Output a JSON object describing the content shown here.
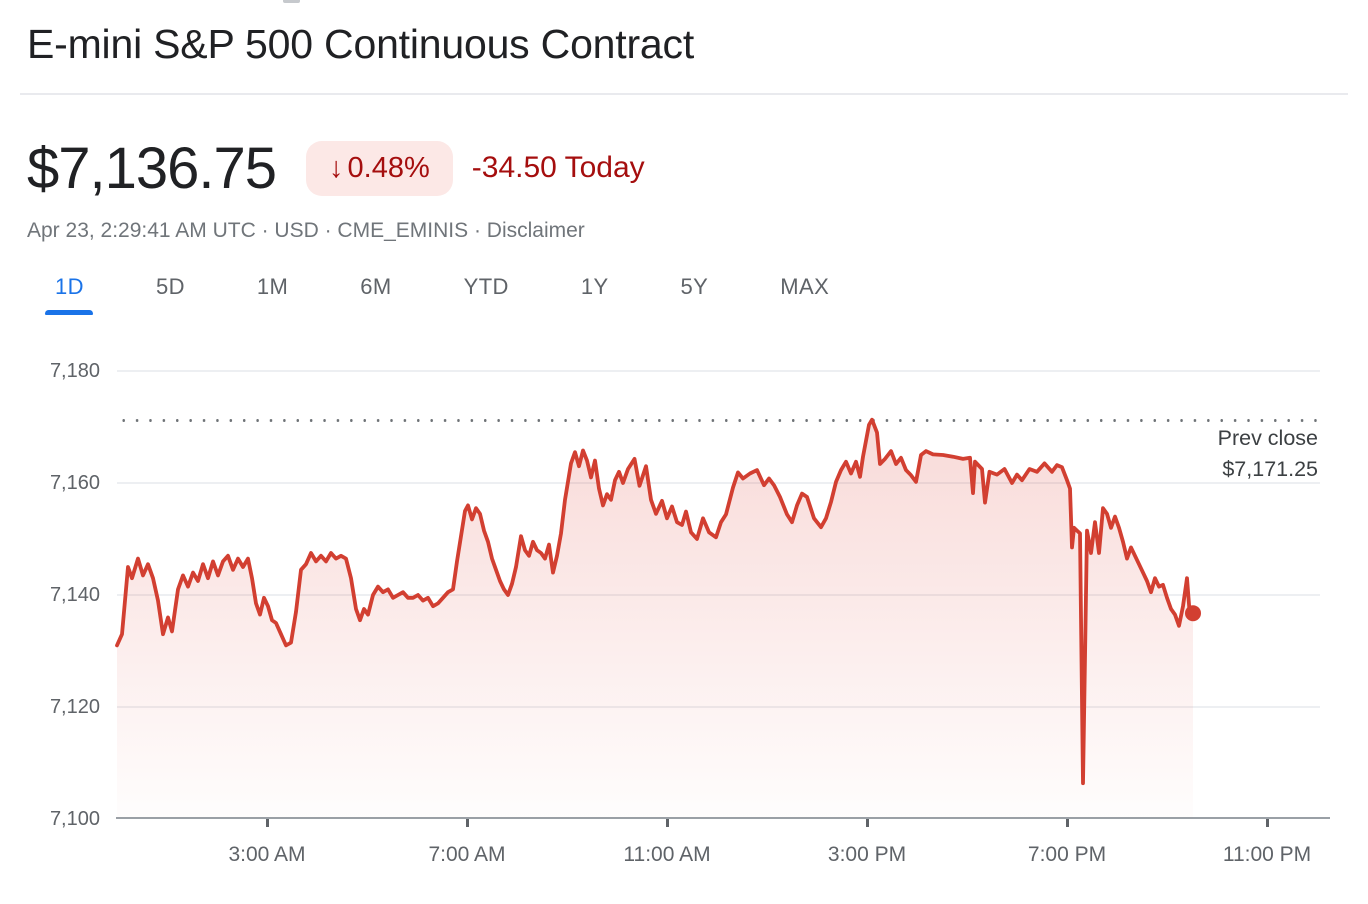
{
  "header": {
    "title": "E-mini S&P 500 Continuous Contract"
  },
  "quote": {
    "price": "$7,136.75",
    "arrow_glyph": "↓",
    "change_percent": "0.48%",
    "change_today": "-34.50 Today",
    "meta_text": "Apr 23, 2:29:41 AM UTC · USD · CME_EMINIS · ",
    "disclaimer_label": "Disclaimer",
    "down_color": "#a50e0e",
    "badge_bg": "#fce8e6"
  },
  "tabs": {
    "items": [
      {
        "label": "1D",
        "active": true
      },
      {
        "label": "5D",
        "active": false
      },
      {
        "label": "1M",
        "active": false
      },
      {
        "label": "6M",
        "active": false
      },
      {
        "label": "YTD",
        "active": false
      },
      {
        "label": "1Y",
        "active": false
      },
      {
        "label": "5Y",
        "active": false
      },
      {
        "label": "MAX",
        "active": false
      }
    ],
    "active_color": "#1a73e8",
    "inactive_color": "#5f6368"
  },
  "chart_data": {
    "type": "line",
    "title": "E-mini S&P 500 intraday price",
    "x_unit": "hours_since_midnight",
    "xlim": [
      0,
      24.06
    ],
    "ylim": [
      7100,
      7183.75
    ],
    "grid": true,
    "line_color": "#d23f31",
    "fill_color": "#d93025",
    "prev_close": 7171.25,
    "prev_close_label": [
      "Prev close",
      "$7,171.25"
    ],
    "last_price": 7136.75,
    "y_ticks": [
      {
        "value": 7180,
        "label": "7,180"
      },
      {
        "value": 7160,
        "label": "7,160"
      },
      {
        "value": 7140,
        "label": "7,140"
      },
      {
        "value": 7120,
        "label": "7,120"
      },
      {
        "value": 7100,
        "label": "7,100"
      }
    ],
    "x_ticks": [
      {
        "hour": 3,
        "label": "3:00 AM"
      },
      {
        "hour": 7,
        "label": "7:00 AM"
      },
      {
        "hour": 11,
        "label": "11:00 AM"
      },
      {
        "hour": 15,
        "label": "3:00 PM"
      },
      {
        "hour": 19,
        "label": "7:00 PM"
      },
      {
        "hour": 23,
        "label": "11:00 PM"
      }
    ],
    "series": [
      {
        "name": "price",
        "points": [
          [
            0.0,
            7131
          ],
          [
            0.1,
            7133
          ],
          [
            0.22,
            7145
          ],
          [
            0.3,
            7143
          ],
          [
            0.42,
            7146.5
          ],
          [
            0.52,
            7143.5
          ],
          [
            0.62,
            7145.5
          ],
          [
            0.72,
            7143
          ],
          [
            0.82,
            7139
          ],
          [
            0.92,
            7133
          ],
          [
            1.02,
            7136
          ],
          [
            1.1,
            7133.5
          ],
          [
            1.22,
            7141
          ],
          [
            1.32,
            7143.5
          ],
          [
            1.42,
            7141.5
          ],
          [
            1.52,
            7144
          ],
          [
            1.62,
            7142.5
          ],
          [
            1.72,
            7145.5
          ],
          [
            1.82,
            7143
          ],
          [
            1.92,
            7146
          ],
          [
            2.02,
            7143.5
          ],
          [
            2.12,
            7146
          ],
          [
            2.22,
            7147
          ],
          [
            2.32,
            7144.5
          ],
          [
            2.42,
            7146.5
          ],
          [
            2.52,
            7145
          ],
          [
            2.62,
            7146.5
          ],
          [
            2.7,
            7143
          ],
          [
            2.78,
            7138.5
          ],
          [
            2.86,
            7136.5
          ],
          [
            2.94,
            7139.5
          ],
          [
            3.02,
            7138
          ],
          [
            3.1,
            7135.5
          ],
          [
            3.18,
            7135
          ],
          [
            3.28,
            7133
          ],
          [
            3.38,
            7131
          ],
          [
            3.48,
            7131.5
          ],
          [
            3.58,
            7137
          ],
          [
            3.68,
            7144.5
          ],
          [
            3.78,
            7145.5
          ],
          [
            3.88,
            7147.5
          ],
          [
            3.98,
            7146
          ],
          [
            4.08,
            7147
          ],
          [
            4.18,
            7146
          ],
          [
            4.28,
            7147.5
          ],
          [
            4.38,
            7146.5
          ],
          [
            4.48,
            7147
          ],
          [
            4.58,
            7146.5
          ],
          [
            4.68,
            7143
          ],
          [
            4.78,
            7137.5
          ],
          [
            4.86,
            7135.5
          ],
          [
            4.94,
            7137.5
          ],
          [
            5.02,
            7136.5
          ],
          [
            5.12,
            7140
          ],
          [
            5.22,
            7141.5
          ],
          [
            5.32,
            7140.5
          ],
          [
            5.42,
            7141
          ],
          [
            5.52,
            7139.5
          ],
          [
            5.62,
            7140
          ],
          [
            5.72,
            7140.5
          ],
          [
            5.82,
            7139.5
          ],
          [
            5.92,
            7139.5
          ],
          [
            6.02,
            7140
          ],
          [
            6.12,
            7139
          ],
          [
            6.22,
            7139.5
          ],
          [
            6.32,
            7138
          ],
          [
            6.42,
            7138.5
          ],
          [
            6.52,
            7139.5
          ],
          [
            6.62,
            7140.5
          ],
          [
            6.72,
            7141
          ],
          [
            6.8,
            7146
          ],
          [
            6.88,
            7150.5
          ],
          [
            6.96,
            7155
          ],
          [
            7.02,
            7156
          ],
          [
            7.1,
            7153.5
          ],
          [
            7.18,
            7155.5
          ],
          [
            7.26,
            7154.5
          ],
          [
            7.34,
            7151.5
          ],
          [
            7.42,
            7149.5
          ],
          [
            7.5,
            7146.5
          ],
          [
            7.58,
            7144.5
          ],
          [
            7.66,
            7142.5
          ],
          [
            7.74,
            7141
          ],
          [
            7.82,
            7140
          ],
          [
            7.9,
            7142
          ],
          [
            7.98,
            7145
          ],
          [
            8.08,
            7150.5
          ],
          [
            8.16,
            7148
          ],
          [
            8.24,
            7147
          ],
          [
            8.32,
            7149.5
          ],
          [
            8.4,
            7148
          ],
          [
            8.48,
            7147.5
          ],
          [
            8.56,
            7146.5
          ],
          [
            8.64,
            7149
          ],
          [
            8.72,
            7144
          ],
          [
            8.8,
            7147
          ],
          [
            8.88,
            7151
          ],
          [
            8.96,
            7157
          ],
          [
            9.08,
            7163.5
          ],
          [
            9.16,
            7165.5
          ],
          [
            9.24,
            7163
          ],
          [
            9.32,
            7165.8
          ],
          [
            9.4,
            7164
          ],
          [
            9.48,
            7161
          ],
          [
            9.56,
            7164
          ],
          [
            9.64,
            7159
          ],
          [
            9.72,
            7156
          ],
          [
            9.8,
            7158
          ],
          [
            9.88,
            7157
          ],
          [
            9.96,
            7160.5
          ],
          [
            10.04,
            7162
          ],
          [
            10.12,
            7160
          ],
          [
            10.22,
            7162.5
          ],
          [
            10.35,
            7164.3
          ],
          [
            10.45,
            7159.5
          ],
          [
            10.58,
            7163
          ],
          [
            10.68,
            7157
          ],
          [
            10.78,
            7154.5
          ],
          [
            10.9,
            7156.8
          ],
          [
            11.0,
            7153.7
          ],
          [
            11.1,
            7155.8
          ],
          [
            11.2,
            7153
          ],
          [
            11.3,
            7152.5
          ],
          [
            11.38,
            7154.9
          ],
          [
            11.48,
            7151.2
          ],
          [
            11.6,
            7150
          ],
          [
            11.72,
            7153.7
          ],
          [
            11.84,
            7151.2
          ],
          [
            11.98,
            7150.3
          ],
          [
            12.08,
            7153
          ],
          [
            12.18,
            7154.4
          ],
          [
            12.32,
            7159.2
          ],
          [
            12.42,
            7161.9
          ],
          [
            12.52,
            7160.8
          ],
          [
            12.66,
            7161.7
          ],
          [
            12.8,
            7162.3
          ],
          [
            12.94,
            7159.6
          ],
          [
            13.04,
            7160.8
          ],
          [
            13.14,
            7159.6
          ],
          [
            13.26,
            7157.5
          ],
          [
            13.4,
            7154.4
          ],
          [
            13.5,
            7153
          ],
          [
            13.6,
            7156
          ],
          [
            13.7,
            7158.1
          ],
          [
            13.8,
            7157.5
          ],
          [
            13.94,
            7153.7
          ],
          [
            14.08,
            7152.1
          ],
          [
            14.18,
            7153.7
          ],
          [
            14.28,
            7156.6
          ],
          [
            14.38,
            7160.2
          ],
          [
            14.48,
            7162.3
          ],
          [
            14.58,
            7163.8
          ],
          [
            14.68,
            7161.7
          ],
          [
            14.78,
            7163.8
          ],
          [
            14.86,
            7161.1
          ],
          [
            14.92,
            7164.7
          ],
          [
            15.04,
            7170.4
          ],
          [
            15.1,
            7171.3
          ],
          [
            15.2,
            7169
          ],
          [
            15.26,
            7163.4
          ],
          [
            15.36,
            7164.3
          ],
          [
            15.48,
            7165.7
          ],
          [
            15.58,
            7163.4
          ],
          [
            15.68,
            7164.5
          ],
          [
            15.78,
            7162.3
          ],
          [
            15.88,
            7161.4
          ],
          [
            15.98,
            7160.2
          ],
          [
            16.08,
            7165
          ],
          [
            16.18,
            7165.7
          ],
          [
            16.32,
            7165.1
          ],
          [
            16.52,
            7165
          ],
          [
            16.72,
            7164.7
          ],
          [
            16.92,
            7164.3
          ],
          [
            17.06,
            7164.5
          ],
          [
            17.12,
            7158.2
          ],
          [
            17.16,
            7163.8
          ],
          [
            17.3,
            7162.5
          ],
          [
            17.36,
            7156.5
          ],
          [
            17.45,
            7162
          ],
          [
            17.6,
            7161.5
          ],
          [
            17.75,
            7162.5
          ],
          [
            17.9,
            7160
          ],
          [
            18.0,
            7161.5
          ],
          [
            18.1,
            7160.5
          ],
          [
            18.25,
            7162.5
          ],
          [
            18.4,
            7162
          ],
          [
            18.55,
            7163.5
          ],
          [
            18.7,
            7162
          ],
          [
            18.8,
            7163.2
          ],
          [
            18.9,
            7162.8
          ],
          [
            19.0,
            7160.5
          ],
          [
            19.06,
            7159
          ],
          [
            19.1,
            7148.5
          ],
          [
            19.14,
            7152
          ],
          [
            19.2,
            7151.5
          ],
          [
            19.26,
            7151
          ],
          [
            19.32,
            7106.4
          ],
          [
            19.4,
            7151.5
          ],
          [
            19.48,
            7147.5
          ],
          [
            19.56,
            7153
          ],
          [
            19.64,
            7147.5
          ],
          [
            19.72,
            7155.5
          ],
          [
            19.8,
            7154.5
          ],
          [
            19.88,
            7152
          ],
          [
            19.96,
            7154
          ],
          [
            20.04,
            7152
          ],
          [
            20.12,
            7149.5
          ],
          [
            20.2,
            7146.5
          ],
          [
            20.28,
            7148.5
          ],
          [
            20.36,
            7147
          ],
          [
            20.44,
            7145.5
          ],
          [
            20.52,
            7144
          ],
          [
            20.6,
            7142.5
          ],
          [
            20.68,
            7140.5
          ],
          [
            20.76,
            7143
          ],
          [
            20.84,
            7141.5
          ],
          [
            20.92,
            7141.8
          ],
          [
            21.0,
            7139.5
          ],
          [
            21.08,
            7137.5
          ],
          [
            21.16,
            7136.5
          ],
          [
            21.24,
            7134.5
          ],
          [
            21.32,
            7138
          ],
          [
            21.4,
            7143
          ],
          [
            21.46,
            7136
          ],
          [
            21.52,
            7136.75
          ]
        ]
      }
    ]
  }
}
